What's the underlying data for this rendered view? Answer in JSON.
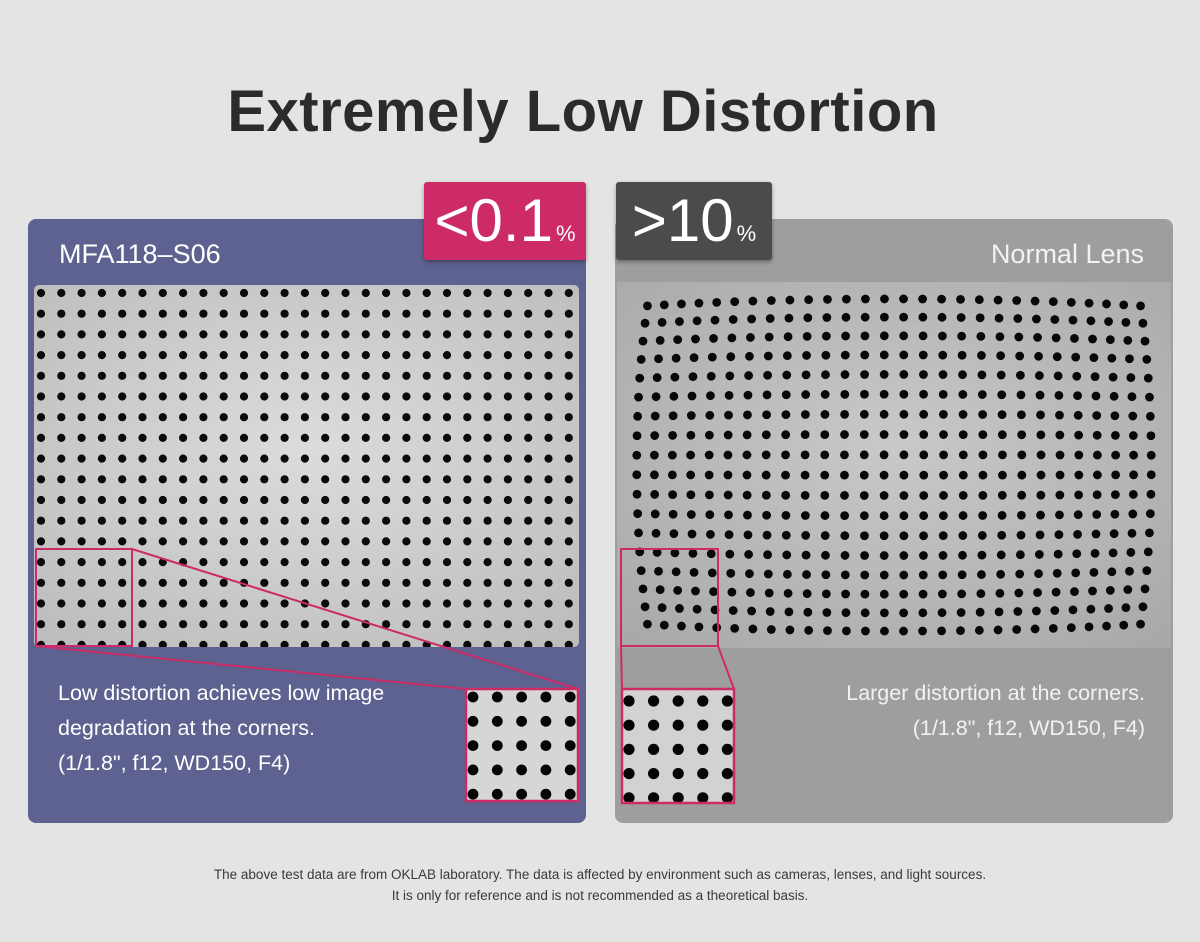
{
  "title": "Extremely Low Distortion",
  "left_panel": {
    "label": "MFA118–S06",
    "badge_value": "<0.1",
    "badge_unit": "%",
    "description_lines": [
      "Low distortion achieves low image",
      "degradation at the corners.",
      "(1/1.8\", f12, WD150, F4)"
    ],
    "color": "#5e6290",
    "badge_color": "#cd2b68"
  },
  "right_panel": {
    "label": "Normal Lens",
    "badge_value": ">10",
    "badge_unit": "%",
    "description_lines": [
      "Larger distortion at the corners.",
      "(1/1.8\", f12, WD150, F4)"
    ],
    "color": "#9e9e9e",
    "badge_color": "#4b4b4b"
  },
  "highlight_color": "#cd2b68",
  "footnote_lines": [
    "The above test data are from OKLAB laboratory. The data is affected by environment such as cameras, lenses, and light sources.",
    "It is only for reference and is not recommended as a theoretical basis."
  ]
}
